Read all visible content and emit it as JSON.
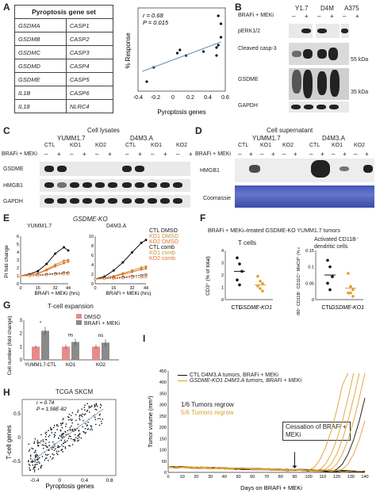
{
  "panel_labels": [
    "A",
    "B",
    "C",
    "D",
    "E",
    "F",
    "G",
    "H",
    "I"
  ],
  "panelA": {
    "table_title": "Pyroptosis gene set",
    "genes": [
      [
        "GSDMA",
        "CASP1"
      ],
      [
        "GSDMB",
        "CASP2"
      ],
      [
        "GSDMC",
        "CASP3"
      ],
      [
        "GSDMD",
        "CASP4"
      ],
      [
        "GSDME",
        "CASP5"
      ],
      [
        "IL1B",
        "CASP6"
      ],
      [
        "IL18",
        "NLRC4"
      ]
    ],
    "stat_r": "r = 0.68",
    "stat_p": "P = 0.015",
    "ylabel": "% Response",
    "xlabel": "Pyroptosis genes"
  },
  "panelB": {
    "treatment": "BRAFi + MEKi",
    "cell_lines": [
      "Y1.7",
      "D4M",
      "A375"
    ],
    "signs": [
      "–",
      "+",
      "–",
      "+",
      "–",
      "+"
    ],
    "rows": [
      "pERK1/2",
      "Cleaved casp-3",
      "GSDME",
      "GAPDH"
    ],
    "kda": [
      "55 kDa",
      "35 kDa"
    ]
  },
  "panelC": {
    "title": "Cell lysates",
    "lines": [
      "YUMM1.7",
      "D4M3.A"
    ],
    "treatment": "BRAFi + MEKi",
    "groups": [
      "CTL",
      "KO1",
      "KO2",
      "CTL",
      "KO1",
      "KO2"
    ],
    "signs": [
      "–",
      "+",
      "–",
      "+",
      "–",
      "+",
      "–",
      "+",
      "–",
      "+",
      "–",
      "+"
    ],
    "rows": [
      "GSDME",
      "HMGB1",
      "GAPDH"
    ]
  },
  "panelD": {
    "title": "Cell supernatant",
    "lines": [
      "YUMM1.7",
      "D4M3.A"
    ],
    "treatment": "BRAFi + MEKi",
    "groups": [
      "CTL",
      "KO1",
      "KO2",
      "CTL",
      "KO1",
      "KO2"
    ],
    "signs": [
      "–",
      "+",
      "–",
      "+",
      "–",
      "+",
      "–",
      "+",
      "–",
      "+",
      "–",
      "+"
    ],
    "rows": [
      "HMGB1",
      "Coomassie"
    ]
  },
  "panelE": {
    "title": "GSDME-KO",
    "subplots": [
      "YUMM1.7",
      "D4M3.A"
    ],
    "ylabel": "PI fold change",
    "xlabel": "BRAFi + MEKi (hrs)",
    "legend": [
      "CTL DMSO",
      "KO1 DMSO",
      "KO2 DMSO",
      "CTL comb",
      "KO1 comb",
      "KO2 comb"
    ],
    "colors": {
      "ctl": "#111111",
      "ko1": "#d9a441",
      "ko2": "#e8742a"
    }
  },
  "panelF": {
    "title": "BRAFi + MEKi–treated GSDME-KO YUMM1.7 tumors",
    "sub1": "T cells",
    "sub2": "Activated CD11B⁻ dendritic cells",
    "ylabel1": "CD3⁺ (% of total)",
    "ylabel2": "F4/80⁻ CD11B⁻ CD11C⁺ MHCIIʰⁱ (% of total)",
    "xcats": [
      "CTL",
      "GSDME-KO1"
    ]
  },
  "panelG": {
    "title": "T-cell expansion",
    "legend": [
      "DMSO",
      "BRAFi + MEKi"
    ],
    "ylabel": "Cell number (fold change)",
    "xcats": [
      "YUMM1.7-CTL",
      "KO1",
      "KO2"
    ],
    "sig": [
      "*",
      "ns",
      "ns"
    ],
    "colors": {
      "dmso": "#e98a8a",
      "comb": "#8a8a8a"
    }
  },
  "panelH": {
    "title": "TCGA SKCM",
    "stat_r": "r = 0.74",
    "stat_p": "P = 1.58E-82",
    "ylabel": "T-cell genes",
    "xlabel": "Pyroptosis genes"
  },
  "panelI": {
    "legend": [
      "CTL D4M3.A tumors, BRAFi + MEKi",
      "GSDME-KO1 D4M3.A tumors, BRAFi + MEKi"
    ],
    "regrow_ctl": "1/6 Tumors regrow",
    "regrow_ko": "5/6 Tumors regrow",
    "annotation": "Cessation of BRAFi + MEKi",
    "ylabel": "Tumor volume (mm³)",
    "xlabel": "Days on BRAFi + MEKi",
    "colors": {
      "ctl": "#111111",
      "ko": "#e0a030"
    }
  },
  "chart_data": [
    {
      "type": "scatter",
      "panel": "A",
      "xlabel": "Pyroptosis genes",
      "ylabel": "% Response",
      "xlim": [
        -0.4,
        0.6
      ],
      "x_ticks": [
        -0.4,
        -0.2,
        0,
        0.2,
        0.4,
        0.6
      ],
      "points": [
        [
          -0.3,
          0.12
        ],
        [
          -0.22,
          0.3
        ],
        [
          0.05,
          0.48
        ],
        [
          0.08,
          0.52
        ],
        [
          0.15,
          0.45
        ],
        [
          0.35,
          0.5
        ],
        [
          0.5,
          0.45
        ],
        [
          0.52,
          0.58
        ],
        [
          0.55,
          0.68
        ],
        [
          0.52,
          0.95
        ],
        [
          0.55,
          0.85
        ],
        [
          0.5,
          0.55
        ]
      ],
      "fit_line": [
        [
          -0.35,
          0.25
        ],
        [
          0.55,
          0.62
        ]
      ]
    },
    {
      "type": "line",
      "panel": "E-YUMM1.7",
      "x": [
        0,
        8,
        16,
        24,
        32,
        40,
        44
      ],
      "x_ticks": [
        0,
        16,
        32,
        44
      ],
      "y_ticks": [
        0,
        1,
        2,
        3,
        4,
        5,
        6
      ],
      "series": [
        {
          "name": "CTL comb",
          "values": [
            1,
            1.2,
            1.6,
            2.5,
            3.8,
            4.6,
            4.2
          ]
        },
        {
          "name": "KO1 comb",
          "values": [
            1,
            1.1,
            1.3,
            1.8,
            2.4,
            2.9,
            3.0
          ]
        },
        {
          "name": "KO2 comb",
          "values": [
            1,
            1.1,
            1.3,
            1.7,
            2.2,
            2.6,
            2.8
          ]
        },
        {
          "name": "CTL DMSO",
          "values": [
            1,
            1.0,
            1.1,
            1.2,
            1.3,
            1.4,
            1.4
          ]
        },
        {
          "name": "KO1 DMSO",
          "values": [
            1,
            1.0,
            1.05,
            1.1,
            1.2,
            1.3,
            1.3
          ]
        },
        {
          "name": "KO2 DMSO",
          "values": [
            1,
            1.0,
            1.05,
            1.1,
            1.15,
            1.2,
            1.2
          ]
        }
      ]
    },
    {
      "type": "line",
      "panel": "E-D4M3.A",
      "x": [
        0,
        8,
        16,
        24,
        32,
        40,
        44
      ],
      "x_ticks": [
        0,
        16,
        32,
        44
      ],
      "y_ticks": [
        0,
        2,
        4,
        6,
        8,
        10
      ],
      "series": [
        {
          "name": "CTL comb",
          "values": [
            1,
            1.5,
            2.8,
            4.5,
            6.6,
            8.6,
            9.2
          ]
        },
        {
          "name": "KO1 comb",
          "values": [
            1,
            1.2,
            1.6,
            2.2,
            2.8,
            3.4,
            3.6
          ]
        },
        {
          "name": "KO2 comb",
          "values": [
            1,
            1.2,
            1.5,
            2.0,
            2.5,
            3.0,
            3.2
          ]
        },
        {
          "name": "CTL DMSO",
          "values": [
            1,
            1.1,
            1.2,
            1.4,
            1.6,
            1.8,
            1.9
          ]
        },
        {
          "name": "KO1 DMSO",
          "values": [
            1,
            1.05,
            1.1,
            1.2,
            1.3,
            1.4,
            1.5
          ]
        },
        {
          "name": "KO2 DMSO",
          "values": [
            1,
            1.05,
            1.1,
            1.2,
            1.3,
            1.35,
            1.4
          ]
        }
      ]
    },
    {
      "type": "scatter",
      "panel": "F-T cells",
      "ylim": [
        0,
        4
      ],
      "y_ticks": [
        0,
        1,
        2,
        3,
        4
      ],
      "groups": [
        {
          "name": "CTL",
          "values": [
            3.4,
            2.9,
            2.3,
            1.6,
            1.2
          ],
          "mean": 2.3
        },
        {
          "name": "GSDME-KO1",
          "values": [
            1.9,
            1.5,
            1.3,
            1.1,
            0.9,
            0.7
          ],
          "mean": 1.2
        }
      ]
    },
    {
      "type": "scatter",
      "panel": "F-DC",
      "ylim": [
        0,
        0.15
      ],
      "y_ticks": [
        0,
        0.05,
        0.1,
        0.15
      ],
      "groups": [
        {
          "name": "CTL",
          "values": [
            0.12,
            0.1,
            0.07,
            0.05,
            0.03
          ],
          "mean": 0.075
        },
        {
          "name": "GSDME-KO1",
          "values": [
            0.08,
            0.04,
            0.03,
            0.02,
            0.02,
            0.01
          ],
          "mean": 0.035
        }
      ]
    },
    {
      "type": "bar",
      "panel": "G",
      "categories": [
        "YUMM1.7-CTL",
        "KO1",
        "KO2"
      ],
      "ylim": [
        0,
        3
      ],
      "y_ticks": [
        0,
        1,
        2,
        3
      ],
      "series": [
        {
          "name": "DMSO",
          "values": [
            1.0,
            1.0,
            1.0
          ],
          "errors": [
            0.1,
            0.15,
            0.15
          ]
        },
        {
          "name": "BRAFi + MEKi",
          "values": [
            2.2,
            1.35,
            1.3
          ],
          "errors": [
            0.3,
            0.25,
            0.25
          ]
        }
      ]
    },
    {
      "type": "scatter",
      "panel": "H",
      "xlabel": "Pyroptosis genes",
      "ylabel": "T-cell genes",
      "x_ticks": [
        -0.4,
        0,
        0.4,
        0.8
      ],
      "y_ticks": [
        -0.5,
        0,
        0.5
      ],
      "fit_line": [
        [
          -0.45,
          -0.5
        ],
        [
          0.7,
          0.6
        ]
      ]
    },
    {
      "type": "line",
      "panel": "I",
      "xlabel": "Days on BRAFi + MEKi",
      "ylabel": "Tumor volume (mm³)",
      "xlim": [
        0,
        140
      ],
      "ylim": [
        0,
        450
      ],
      "x_ticks": [
        0,
        10,
        20,
        30,
        40,
        50,
        60,
        70,
        80,
        90,
        100,
        110,
        120,
        130,
        140
      ],
      "y_ticks": [
        0,
        50,
        100,
        150,
        200,
        250,
        300,
        350,
        400,
        450
      ],
      "cessation_day": 90
    }
  ]
}
